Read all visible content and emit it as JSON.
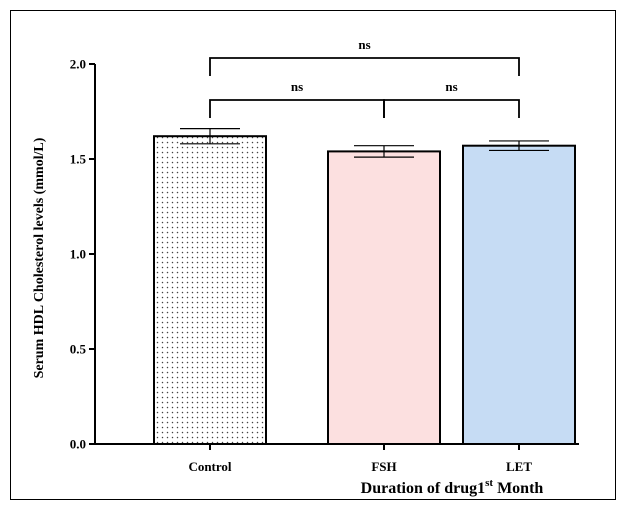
{
  "chart_data": {
    "type": "bar",
    "categories": [
      "Control",
      "FSH",
      "LET"
    ],
    "values": [
      1.62,
      1.54,
      1.57
    ],
    "errors": [
      0.04,
      0.03,
      0.025
    ],
    "bar_colors": [
      "#ffffff",
      "#fce0e0",
      "#c6dcf4"
    ],
    "bar_patterns": [
      "dotted",
      "none",
      "none"
    ],
    "ylabel": "Serum HDL Cholesterol levels (mmol/L)",
    "xlabel_main": "Duration of drug",
    "xlabel_num": "1",
    "xlabel_sup": "st",
    "xlabel_tail": " Month",
    "ylim": [
      0,
      2.0
    ],
    "yticks": [
      0.0,
      0.5,
      1.0,
      1.5,
      2.0
    ],
    "ytick_labels": [
      "0.0",
      "0.5",
      "1.0",
      "1.5",
      "2.0"
    ],
    "significance": [
      {
        "from": 0,
        "to": 2,
        "label": "ns",
        "level": 1
      },
      {
        "from": 0,
        "to": 1,
        "label": "ns",
        "level": 0
      },
      {
        "from": 1,
        "to": 2,
        "label": "ns",
        "level": 0
      }
    ],
    "grid": false,
    "legend": "none"
  }
}
